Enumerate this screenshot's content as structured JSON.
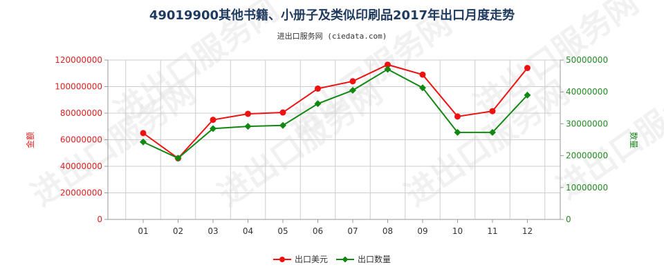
{
  "chart_data": {
    "type": "line",
    "title": "49019900其他书籍、小册子及类似印刷品2017年出口月度走势",
    "subtitle": "进出口服务网 (ciedata.com)",
    "categories": [
      "01",
      "02",
      "03",
      "04",
      "05",
      "06",
      "07",
      "08",
      "09",
      "10",
      "11",
      "12"
    ],
    "y_left": {
      "label": "金额",
      "ylim": [
        0,
        120000000
      ],
      "ticks": [
        "0",
        "20000000",
        "40000000",
        "60000000",
        "80000000",
        "100000000",
        "120000000"
      ],
      "color": "#e02020"
    },
    "y_right": {
      "label": "数量",
      "ylim": [
        0,
        50000000
      ],
      "ticks": [
        "0",
        "10000000",
        "20000000",
        "30000000",
        "40000000",
        "50000000"
      ],
      "color": "#228b22"
    },
    "series": [
      {
        "name": "出口美元",
        "axis": "left",
        "color": "#ee1111",
        "values": [
          65000000,
          46000000,
          75000000,
          79500000,
          80500000,
          98500000,
          104000000,
          116500000,
          109000000,
          77500000,
          81500000,
          114000000
        ]
      },
      {
        "name": "出口数量",
        "axis": "right",
        "color": "#118811",
        "values": [
          24300000,
          19200000,
          28500000,
          29200000,
          29500000,
          36300000,
          40500000,
          47100000,
          41300000,
          27300000,
          27300000,
          39000000
        ]
      }
    ],
    "grid": true,
    "legend": "bottom-center",
    "watermark": "进出口服务网"
  }
}
